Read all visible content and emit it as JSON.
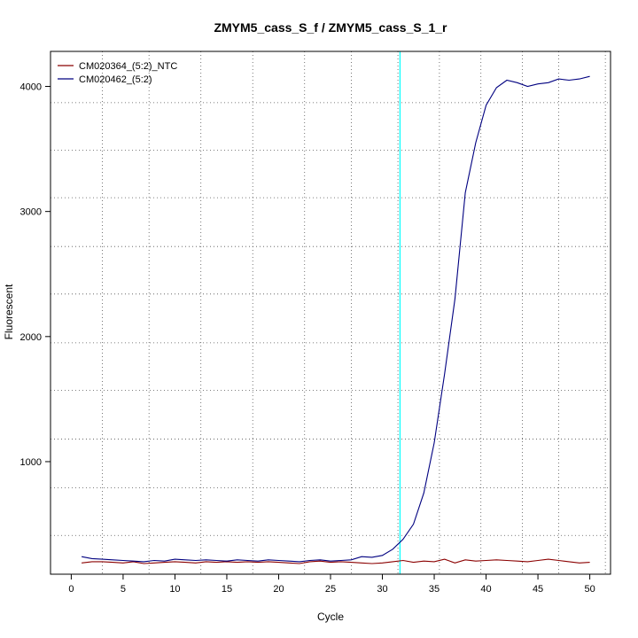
{
  "chart_data": {
    "type": "line",
    "title": "ZMYM5_cass_S_f / ZMYM5_cass_S_1_r",
    "xlabel": "Cycle",
    "ylabel": "Fluorescent",
    "xlim": [
      -2,
      52
    ],
    "ylim": [
      100,
      4280
    ],
    "xticks": [
      0,
      5,
      10,
      15,
      20,
      25,
      30,
      35,
      40,
      45,
      50
    ],
    "yticks": [
      1000,
      2000,
      3000,
      4000
    ],
    "grid_x": [
      3,
      7.5,
      12.5,
      17.5,
      22.5,
      27,
      31.5,
      35.5,
      39.5,
      43.5,
      47,
      51.5
    ],
    "grid_y": [
      410,
      790,
      1180,
      1570,
      1950,
      2340,
      2720,
      3110,
      3490,
      3870
    ],
    "threshold_x": 31.7,
    "legend_position": "top-left",
    "series": [
      {
        "name": "CM020364_(5:2)_NTC",
        "color": "#8b0000",
        "x": [
          1,
          2,
          3,
          4,
          5,
          6,
          7,
          8,
          9,
          10,
          11,
          12,
          13,
          14,
          15,
          16,
          17,
          18,
          19,
          20,
          21,
          22,
          23,
          24,
          25,
          26,
          27,
          28,
          29,
          30,
          31,
          32,
          33,
          34,
          35,
          36,
          37,
          38,
          39,
          40,
          41,
          42,
          43,
          44,
          45,
          46,
          47,
          48,
          49,
          50
        ],
        "values": [
          190,
          200,
          200,
          195,
          190,
          200,
          185,
          190,
          195,
          200,
          195,
          190,
          200,
          195,
          200,
          195,
          200,
          195,
          200,
          195,
          190,
          185,
          200,
          205,
          195,
          200,
          195,
          190,
          185,
          190,
          200,
          210,
          195,
          205,
          200,
          220,
          190,
          215,
          205,
          210,
          215,
          210,
          205,
          200,
          210,
          220,
          210,
          200,
          190,
          195
        ]
      },
      {
        "name": "CM020462_(5:2)",
        "color": "#000080",
        "x": [
          1,
          2,
          3,
          4,
          5,
          6,
          7,
          8,
          9,
          10,
          11,
          12,
          13,
          14,
          15,
          16,
          17,
          18,
          19,
          20,
          21,
          22,
          23,
          24,
          25,
          26,
          27,
          28,
          29,
          30,
          31,
          32,
          33,
          34,
          35,
          36,
          37,
          38,
          39,
          40,
          41,
          42,
          43,
          44,
          45,
          46,
          47,
          48,
          49,
          50
        ],
        "values": [
          240,
          225,
          220,
          215,
          210,
          205,
          200,
          210,
          205,
          220,
          215,
          210,
          215,
          210,
          205,
          215,
          210,
          205,
          215,
          210,
          205,
          200,
          210,
          215,
          205,
          210,
          215,
          240,
          235,
          250,
          300,
          380,
          500,
          750,
          1150,
          1700,
          2300,
          3150,
          3550,
          3850,
          3990,
          4050,
          4030,
          4000,
          4020,
          4030,
          4060,
          4050,
          4060,
          4080
        ]
      }
    ]
  }
}
